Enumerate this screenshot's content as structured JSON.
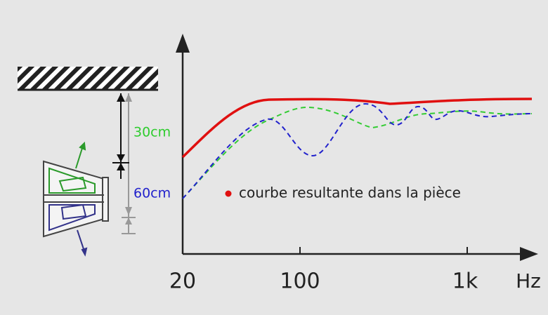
{
  "labels": {
    "distance_near": "30cm",
    "distance_far": "60cm",
    "legend": "courbe resultante dans la pièce"
  },
  "x_axis": {
    "ticks": [
      "20",
      "100",
      "1k"
    ],
    "unit": "Hz"
  }
}
